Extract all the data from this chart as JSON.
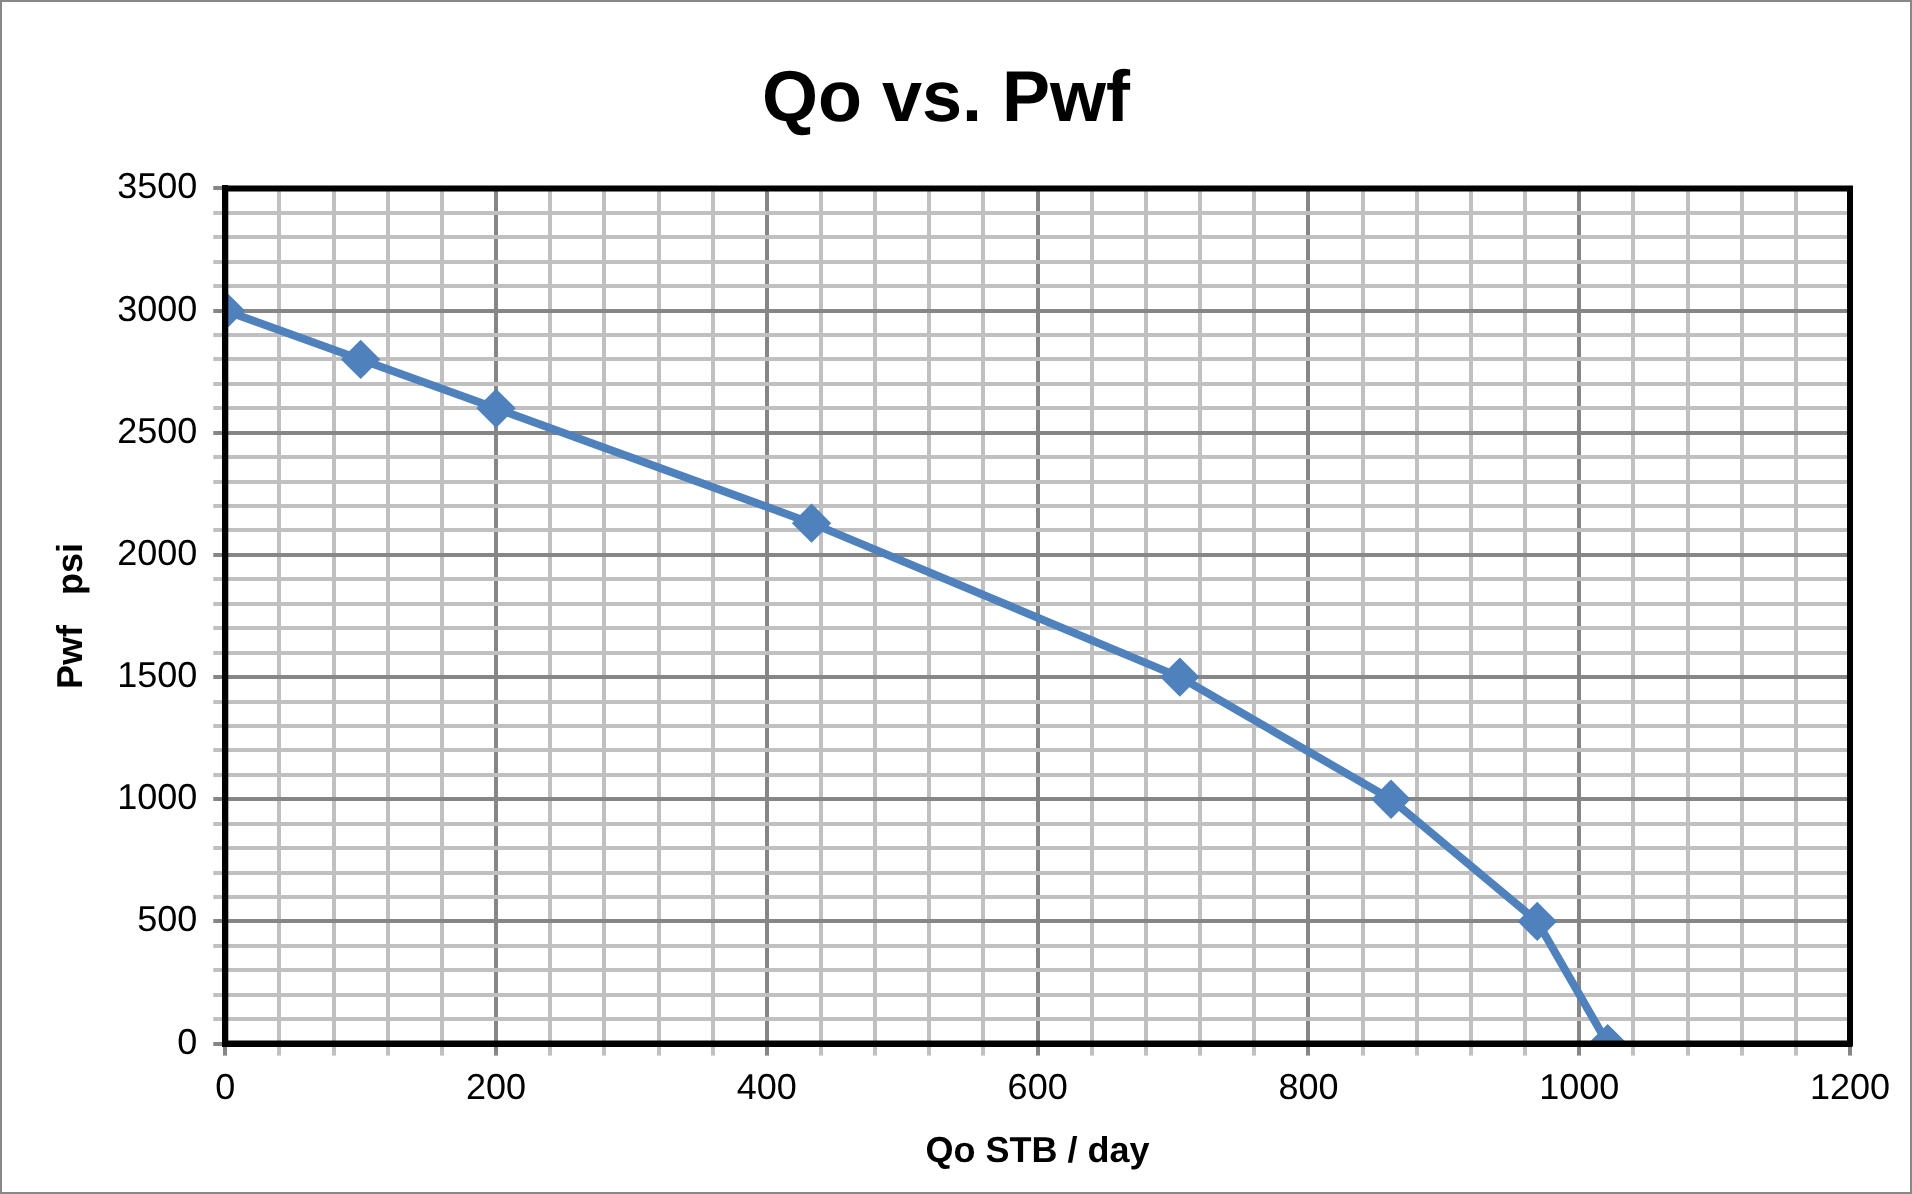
{
  "chart_data": {
    "type": "line",
    "title": "Qo vs. Pwf",
    "xlabel": "Qo STB / day",
    "ylabel": "Pwf   psi",
    "x": [
      0,
      100,
      200,
      433,
      705,
      861,
      969,
      1021
    ],
    "series": [
      {
        "color": "#4f81bd",
        "values": [
          3000,
          2800,
          2600,
          2130,
          1500,
          1000,
          500,
          0
        ]
      }
    ],
    "xlim": [
      0,
      1200
    ],
    "xticks": [
      0,
      {
        "value": 40,
        "label": null
      },
      {
        "value": 80,
        "label": null
      },
      {
        "value": 120,
        "label": null
      },
      {
        "value": 160,
        "label": null
      },
      200,
      {
        "value": 240,
        "label": null
      },
      {
        "value": 280,
        "label": null
      },
      {
        "value": 320,
        "label": null
      },
      {
        "value": 360,
        "label": null
      },
      400,
      {
        "value": 440,
        "label": null
      },
      {
        "value": 480,
        "label": null
      },
      {
        "value": 520,
        "label": null
      },
      {
        "value": 560,
        "label": null
      },
      600,
      {
        "value": 640,
        "label": null
      },
      {
        "value": 680,
        "label": null
      },
      {
        "value": 720,
        "label": null
      },
      {
        "value": 760,
        "label": null
      },
      800,
      {
        "value": 840,
        "label": null
      },
      {
        "value": 880,
        "label": null
      },
      {
        "value": 920,
        "label": null
      },
      {
        "value": 960,
        "label": null
      },
      1000,
      {
        "value": 1040,
        "label": null
      },
      {
        "value": 1080,
        "label": null
      },
      {
        "value": 1120,
        "label": null
      },
      {
        "value": 1160,
        "label": null
      },
      1200
    ],
    "ylim": [
      0,
      3500
    ],
    "yticks": [
      0,
      {
        "value": 100,
        "label": null
      },
      {
        "value": 200,
        "label": null
      },
      {
        "value": 300,
        "label": null
      },
      {
        "value": 400,
        "label": null
      },
      500,
      {
        "value": 600,
        "label": null
      },
      {
        "value": 700,
        "label": null
      },
      {
        "value": 800,
        "label": null
      },
      {
        "value": 900,
        "label": null
      },
      1000,
      {
        "value": 1100,
        "label": null
      },
      {
        "value": 1200,
        "label": null
      },
      {
        "value": 1300,
        "label": null
      },
      {
        "value": 1400,
        "label": null
      },
      1500,
      {
        "value": 1600,
        "label": null
      },
      {
        "value": 1700,
        "label": null
      },
      {
        "value": 1800,
        "label": null
      },
      {
        "value": 1900,
        "label": null
      },
      2000,
      {
        "value": 2100,
        "label": null
      },
      {
        "value": 2200,
        "label": null
      },
      {
        "value": 2300,
        "label": null
      },
      {
        "value": 2400,
        "label": null
      },
      2500,
      {
        "value": 2600,
        "label": null
      },
      {
        "value": 2700,
        "label": null
      },
      {
        "value": 2800,
        "label": null
      },
      {
        "value": 2900,
        "label": null
      },
      3000,
      {
        "value": 3100,
        "label": null
      },
      {
        "value": 3200,
        "label": null
      },
      {
        "value": 3300,
        "label": null
      },
      {
        "value": 3400,
        "label": null
      },
      3500
    ],
    "grid": true,
    "marker": "diamond",
    "line_style": "solid",
    "legend": false
  }
}
